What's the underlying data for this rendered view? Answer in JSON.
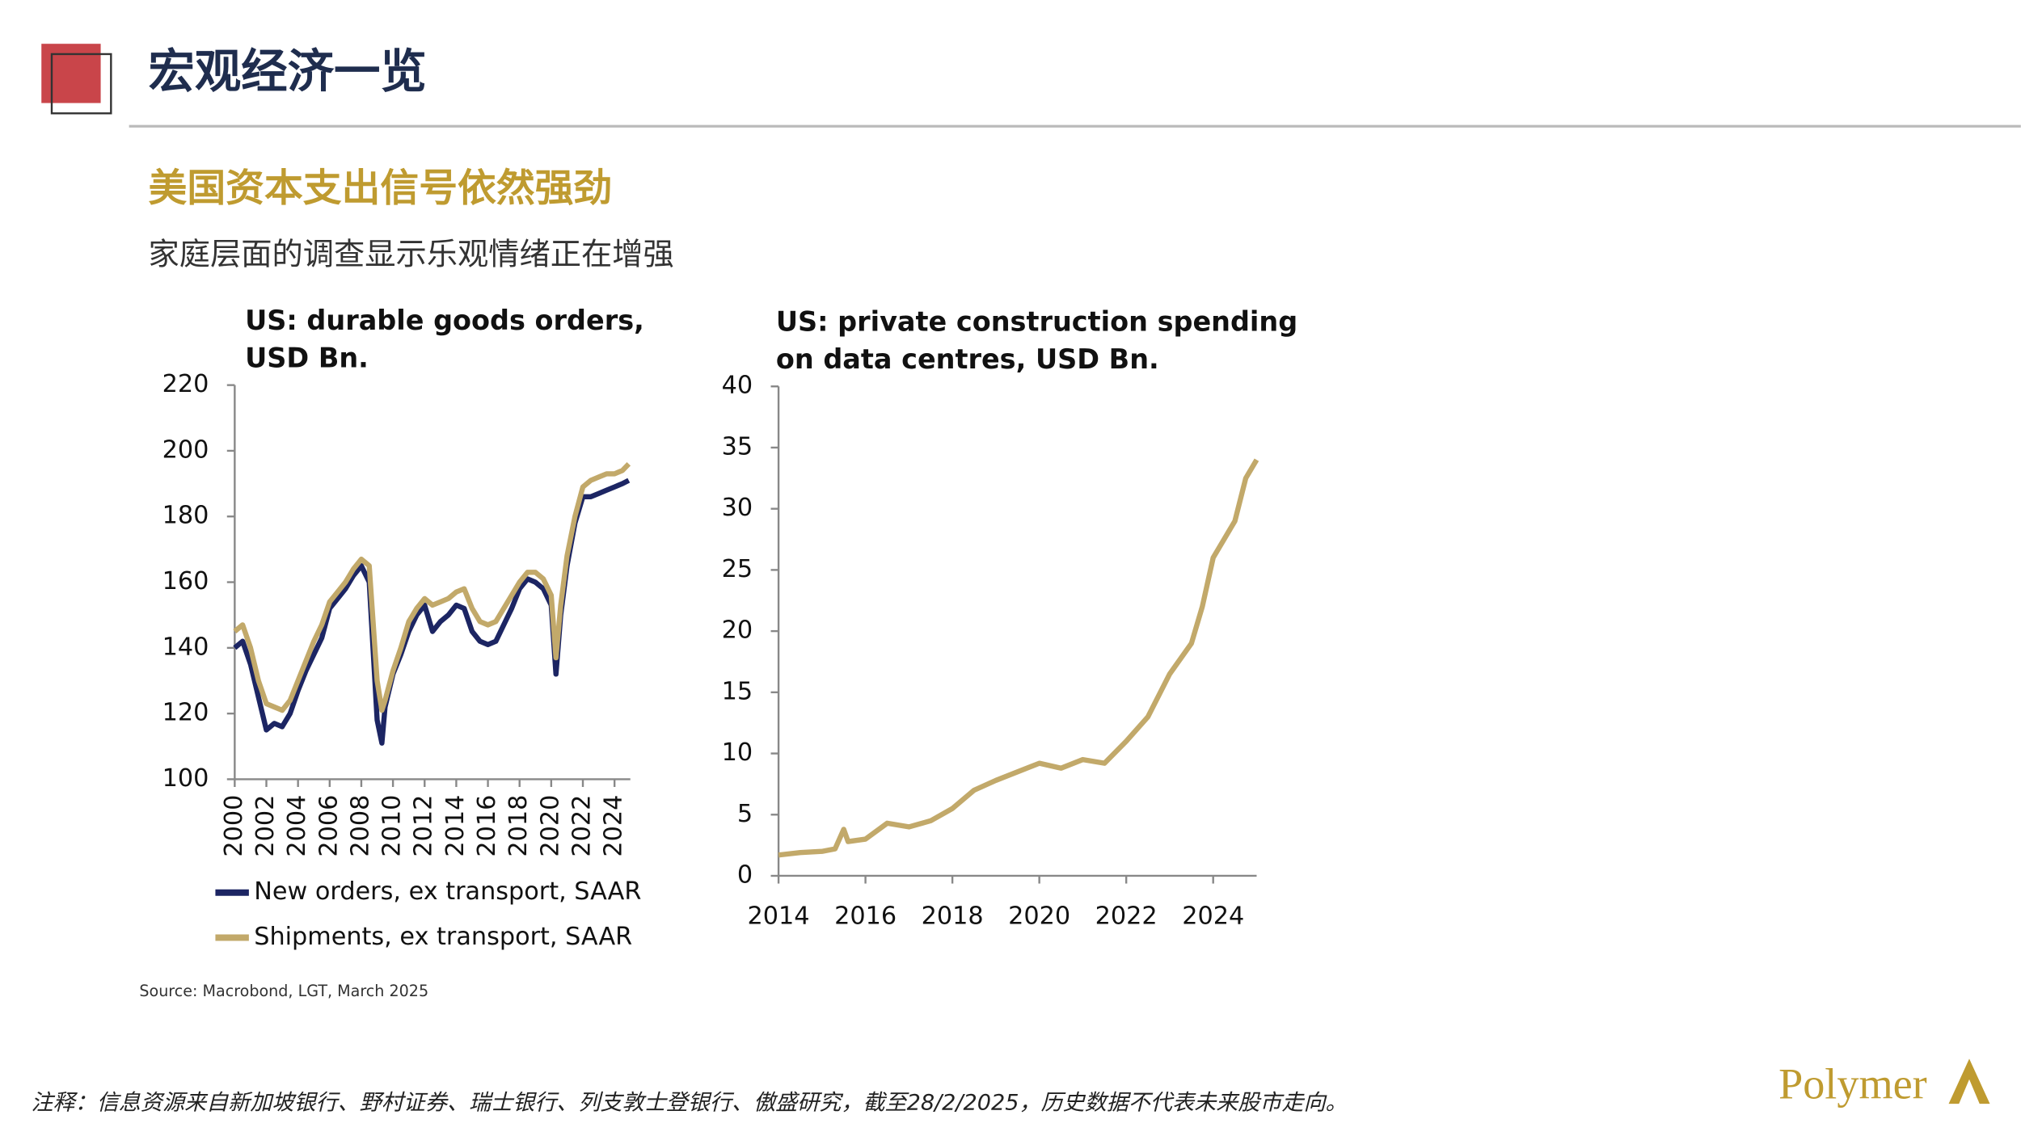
{
  "header": {
    "title": "宏观经济一览"
  },
  "section": {
    "title": "美国资本支出信号依然强劲",
    "subtitle": "家庭层面的调查显示乐观情绪正在增强"
  },
  "chart_data": [
    {
      "type": "line",
      "title": [
        "US: durable goods orders,",
        "USD Bn."
      ],
      "x": [
        2000,
        2000.5,
        2001,
        2001.5,
        2002,
        2002.5,
        2003,
        2003.5,
        2004,
        2004.5,
        2005,
        2005.5,
        2006,
        2006.5,
        2007,
        2007.5,
        2008,
        2008.5,
        2009,
        2009.3,
        2009.5,
        2010,
        2010.5,
        2011,
        2011.5,
        2012,
        2012.5,
        2013,
        2013.5,
        2014,
        2014.5,
        2015,
        2015.5,
        2016,
        2016.5,
        2017,
        2017.5,
        2018,
        2018.5,
        2019,
        2019.5,
        2020,
        2020.3,
        2020.6,
        2021,
        2021.5,
        2022,
        2022.5,
        2023,
        2023.5,
        2024,
        2024.5,
        2024.9
      ],
      "series": [
        {
          "name": "New orders, ex transport, SAAR",
          "color": "#1c2563",
          "values": [
            140,
            142,
            135,
            125,
            115,
            117,
            116,
            120,
            127,
            133,
            138,
            143,
            152,
            155,
            158,
            162,
            165,
            160,
            118,
            111,
            122,
            132,
            138,
            145,
            150,
            153,
            145,
            148,
            150,
            153,
            152,
            145,
            142,
            141,
            142,
            147,
            152,
            158,
            161,
            160,
            158,
            153,
            132,
            150,
            165,
            178,
            186,
            186,
            187,
            188,
            189,
            190,
            191
          ]
        },
        {
          "name": "Shipments, ex transport, SAAR",
          "color": "#c2a96a",
          "values": [
            145,
            147,
            140,
            130,
            123,
            122,
            121,
            124,
            130,
            136,
            142,
            147,
            154,
            157,
            160,
            164,
            167,
            165,
            130,
            121,
            124,
            133,
            140,
            148,
            152,
            155,
            153,
            154,
            155,
            157,
            158,
            152,
            148,
            147,
            148,
            152,
            156,
            160,
            163,
            163,
            161,
            156,
            137,
            153,
            168,
            180,
            189,
            191,
            192,
            193,
            193,
            194,
            196
          ]
        }
      ],
      "xlim": [
        2000,
        2025
      ],
      "xticks": [
        2000,
        2002,
        2004,
        2006,
        2008,
        2010,
        2012,
        2014,
        2016,
        2018,
        2020,
        2022,
        2024
      ],
      "ylim": [
        100,
        220
      ],
      "yticks": [
        100,
        120,
        140,
        160,
        180,
        200,
        220
      ],
      "legend": "bottom"
    },
    {
      "type": "line",
      "title": [
        "US: private construction spending",
        "on data centres, USD Bn."
      ],
      "x": [
        2014,
        2014.5,
        2015,
        2015.3,
        2015.5,
        2015.6,
        2016,
        2016.5,
        2017,
        2017.5,
        2018,
        2018.5,
        2019,
        2019.5,
        2020,
        2020.5,
        2021,
        2021.5,
        2022,
        2022.5,
        2023,
        2023.5,
        2023.75,
        2024,
        2024.5,
        2024.75,
        2025
      ],
      "values": [
        1.7,
        1.9,
        2.0,
        2.2,
        3.8,
        2.8,
        3.0,
        4.3,
        4.0,
        4.5,
        5.5,
        7.0,
        7.8,
        8.5,
        9.2,
        8.8,
        9.5,
        9.2,
        11.0,
        13.0,
        16.5,
        19.0,
        22.0,
        26.0,
        29.0,
        32.5,
        34.0
      ],
      "color": "#c2a96a",
      "xlim": [
        2014,
        2025
      ],
      "xticks": [
        2014,
        2016,
        2018,
        2020,
        2022,
        2024
      ],
      "ylim": [
        0,
        40
      ],
      "yticks": [
        0,
        5,
        10,
        15,
        20,
        25,
        30,
        35,
        40
      ]
    }
  ],
  "source": "Source: Macrobond, LGT, March 2025",
  "footnote": "注释：信息资源来自新加坡银行、野村证券、瑞士银行、列支敦士登银行、傲盛研究，截至28/2/2025，历史数据不代表未来股市走向。",
  "logo": "Polymer"
}
